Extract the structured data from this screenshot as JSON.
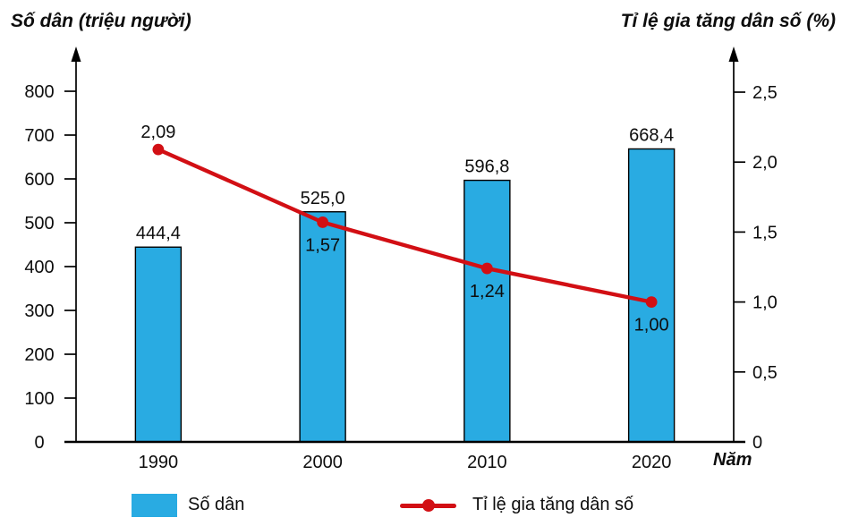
{
  "chart_data": {
    "type": "bar+line",
    "categories": [
      "1990",
      "2000",
      "2010",
      "2020"
    ],
    "x_axis_title": "Năm",
    "left_axis": {
      "title": "Số dân (triệu người)",
      "range": [
        0,
        800
      ],
      "ticks": [
        0,
        100,
        200,
        300,
        400,
        500,
        600,
        700,
        800
      ],
      "tick_labels": [
        "0",
        "100",
        "200",
        "300",
        "400",
        "500",
        "600",
        "700",
        "800"
      ]
    },
    "right_axis": {
      "title": "Tỉ lệ gia tăng dân số (%)",
      "range": [
        0,
        2.5
      ],
      "ticks": [
        0,
        0.5,
        1.0,
        1.5,
        2.0,
        2.5
      ],
      "tick_labels": [
        "0",
        "0,5",
        "1,0",
        "1,5",
        "2,0",
        "2,5"
      ]
    },
    "series": [
      {
        "name": "Số dân",
        "type": "bar",
        "axis": "left",
        "color": "#29ABE2",
        "values": [
          444.4,
          525.0,
          596.8,
          668.4
        ],
        "value_labels": [
          "444,4",
          "525,0",
          "596,8",
          "668,4"
        ]
      },
      {
        "name": "Tỉ lệ gia tăng dân số",
        "type": "line",
        "axis": "right",
        "color": "#D20F14",
        "values": [
          2.09,
          1.57,
          1.24,
          1.0
        ],
        "value_labels": [
          "2,09",
          "1,57",
          "1,24",
          "1,00"
        ],
        "label_positions": [
          "above",
          "below",
          "below",
          "below"
        ]
      }
    ],
    "legend": [
      {
        "label": "Số dân",
        "marker": "bar"
      },
      {
        "label": "Tỉ lệ gia tăng dân số",
        "marker": "line"
      }
    ],
    "colors": {
      "bar": "#29ABE2",
      "line": "#D20F14",
      "axis": "#000000",
      "text": "#0d0d0d"
    }
  }
}
